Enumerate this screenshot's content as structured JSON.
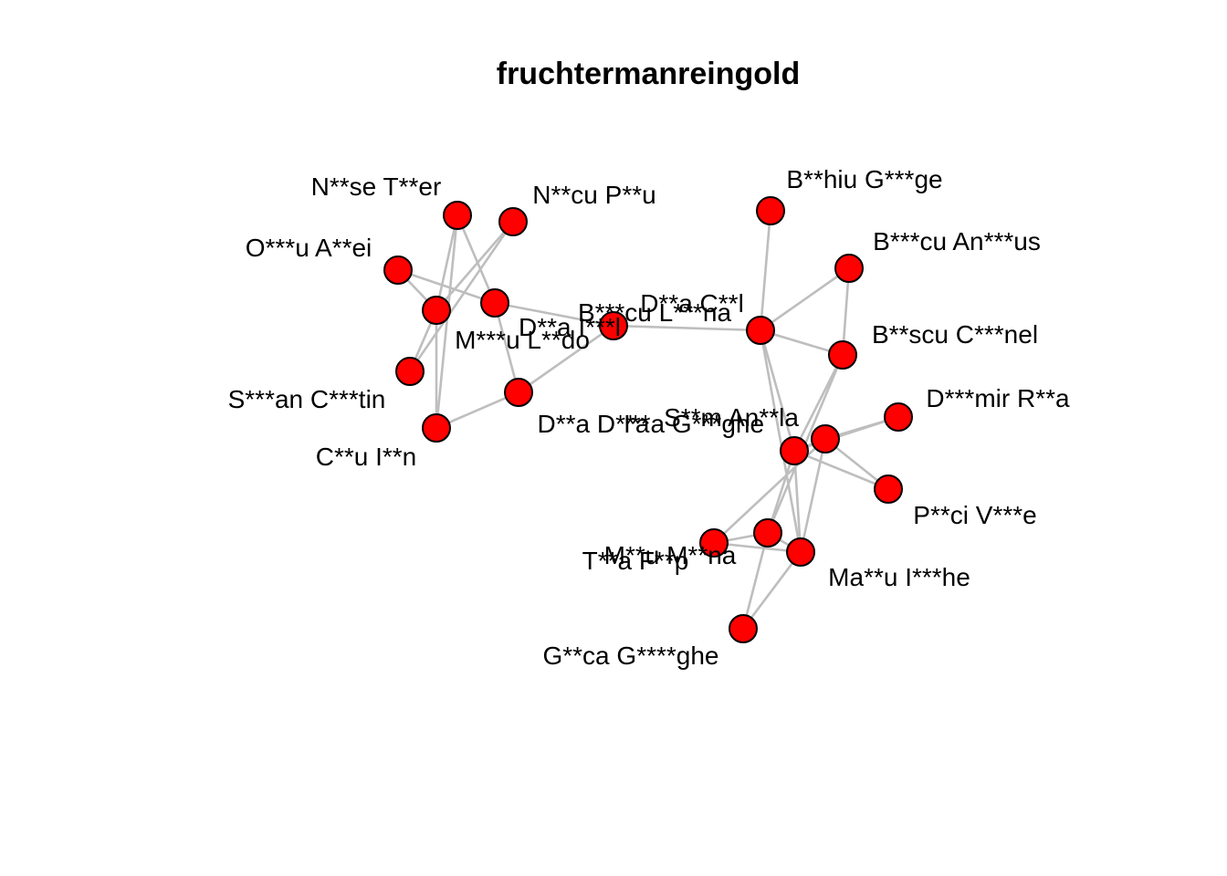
{
  "diagram": {
    "title": "fruchtermanreingold",
    "node_color": "#ff0000",
    "edge_color": "#bebebe",
    "nodes": [
      {
        "id": "n1",
        "label": "N**se T**er"
      },
      {
        "id": "n2",
        "label": "N**cu P**u"
      },
      {
        "id": "n3",
        "label": "O***u A**ei"
      },
      {
        "id": "n4",
        "label": "M***u L**do"
      },
      {
        "id": "n5",
        "label": "D**a I***l"
      },
      {
        "id": "n6",
        "label": "S***an C***tin"
      },
      {
        "id": "n7",
        "label": "D**a D**a"
      },
      {
        "id": "n8",
        "label": "C**u I**n"
      },
      {
        "id": "n9",
        "label": "B***cu L***na"
      },
      {
        "id": "n10",
        "label": "D**a C**l"
      },
      {
        "id": "n11",
        "label": "B**hiu G***ge"
      },
      {
        "id": "n12",
        "label": "B***cu An***us"
      },
      {
        "id": "n13",
        "label": "B**scu C***nel"
      },
      {
        "id": "n14",
        "label": "D***mir R**a"
      },
      {
        "id": "n15",
        "label": "I**a G***ghe"
      },
      {
        "id": "n16",
        "label": "S**m An**la"
      },
      {
        "id": "n17",
        "label": "P**ci V***e"
      },
      {
        "id": "n18",
        "label": "M**u M**na"
      },
      {
        "id": "n19",
        "label": "T**a F**p"
      },
      {
        "id": "n20",
        "label": "Ma**u I***he"
      },
      {
        "id": "n21",
        "label": "G**ca G****ghe"
      }
    ],
    "edges": [
      [
        "n1",
        "n4"
      ],
      [
        "n1",
        "n5"
      ],
      [
        "n1",
        "n8"
      ],
      [
        "n2",
        "n4"
      ],
      [
        "n2",
        "n6"
      ],
      [
        "n3",
        "n4"
      ],
      [
        "n3",
        "n5"
      ],
      [
        "n4",
        "n6"
      ],
      [
        "n4",
        "n8"
      ],
      [
        "n5",
        "n7"
      ],
      [
        "n5",
        "n9"
      ],
      [
        "n7",
        "n8"
      ],
      [
        "n7",
        "n9"
      ],
      [
        "n9",
        "n10"
      ],
      [
        "n10",
        "n11"
      ],
      [
        "n10",
        "n12"
      ],
      [
        "n10",
        "n13"
      ],
      [
        "n10",
        "n15"
      ],
      [
        "n10",
        "n20"
      ],
      [
        "n12",
        "n13"
      ],
      [
        "n13",
        "n15"
      ],
      [
        "n13",
        "n18"
      ],
      [
        "n14",
        "n15"
      ],
      [
        "n14",
        "n16"
      ],
      [
        "n15",
        "n16"
      ],
      [
        "n15",
        "n17"
      ],
      [
        "n16",
        "n17"
      ],
      [
        "n16",
        "n19"
      ],
      [
        "n16",
        "n20"
      ],
      [
        "n15",
        "n18"
      ],
      [
        "n15",
        "n20"
      ],
      [
        "n18",
        "n19"
      ],
      [
        "n18",
        "n20"
      ],
      [
        "n18",
        "n21"
      ],
      [
        "n19",
        "n20"
      ],
      [
        "n20",
        "n21"
      ]
    ]
  }
}
